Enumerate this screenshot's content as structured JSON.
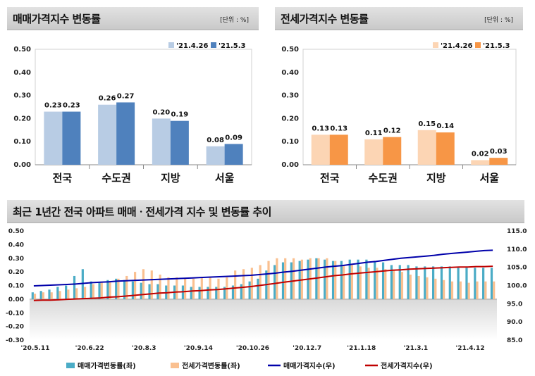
{
  "panels": [
    {
      "title": "매매가격지수 변동률",
      "unit": "[단위 : %]",
      "chart_data": {
        "type": "bar",
        "categories": [
          "전국",
          "수도권",
          "지방",
          "서울"
        ],
        "series": [
          {
            "name": "'21.4.26",
            "values": [
              0.23,
              0.26,
              0.2,
              0.08
            ],
            "color": "#b8cce4"
          },
          {
            "name": "'21.5.3",
            "values": [
              0.23,
              0.27,
              0.19,
              0.09
            ],
            "color": "#4f81bd"
          }
        ],
        "ylim": [
          0,
          0.5
        ],
        "yticks": [
          "0.00",
          "0.10",
          "0.20",
          "0.30",
          "0.40",
          "0.50"
        ],
        "labels": [
          [
            "0.23",
            "0.26",
            "0.20",
            "0.08"
          ],
          [
            "0.23",
            "0.27",
            "0.19",
            "0.09"
          ]
        ]
      }
    },
    {
      "title": "전세가격지수 변동률",
      "unit": "[단위 : %]",
      "chart_data": {
        "type": "bar",
        "categories": [
          "전국",
          "수도권",
          "지방",
          "서울"
        ],
        "series": [
          {
            "name": "'21.4.26",
            "values": [
              0.13,
              0.11,
              0.15,
              0.02
            ],
            "color": "#fcd5b4"
          },
          {
            "name": "'21.5.3",
            "values": [
              0.13,
              0.12,
              0.14,
              0.03
            ],
            "color": "#f79646"
          }
        ],
        "ylim": [
          0,
          0.5
        ],
        "yticks": [
          "0.00",
          "0.10",
          "0.20",
          "0.30",
          "0.40",
          "0.50"
        ],
        "labels": [
          [
            "0.13",
            "0.11",
            "0.15",
            "0.02"
          ],
          [
            "0.13",
            "0.12",
            "0.14",
            "0.03"
          ]
        ]
      }
    }
  ],
  "trend": {
    "title": "최근 1년간 전국 아파트 매매ㆍ전세가격 지수 및 변동률 추이",
    "chart_data": {
      "type": "bar",
      "x_labels": [
        "'20.5.11",
        "'20.6.22",
        "'20.8.3",
        "'20.9.14",
        "'20.10.26",
        "'20.12.7",
        "'21.1.18",
        "'21.3.1",
        "'21.4.12"
      ],
      "left_ylim": [
        -0.3,
        0.5
      ],
      "left_ticks": [
        "0.50",
        "0.40",
        "0.30",
        "0.20",
        "0.10",
        "0.00",
        "-0.10",
        "-0.20",
        "-0.30"
      ],
      "right_ylim": [
        85,
        115
      ],
      "right_ticks": [
        "115.0",
        "110.0",
        "105.0",
        "100.0",
        "95.0",
        "90.0",
        "85.0"
      ],
      "series": [
        {
          "name": "매매가격변동률(좌)",
          "kind": "bar",
          "axis": "left",
          "color": "#4bacc6",
          "values": [
            0.05,
            0.06,
            0.07,
            0.09,
            0.1,
            0.17,
            0.22,
            0.13,
            0.12,
            0.14,
            0.15,
            0.14,
            0.13,
            0.12,
            0.11,
            0.11,
            0.1,
            0.1,
            0.1,
            0.09,
            0.09,
            0.09,
            0.09,
            0.09,
            0.1,
            0.11,
            0.13,
            0.15,
            0.21,
            0.25,
            0.27,
            0.27,
            0.28,
            0.29,
            0.3,
            0.29,
            0.28,
            0.28,
            0.29,
            0.29,
            0.29,
            0.28,
            0.27,
            0.25,
            0.25,
            0.25,
            0.24,
            0.24,
            0.24,
            0.24,
            0.24,
            0.23,
            0.23,
            0.23,
            0.23,
            0.23
          ]
        },
        {
          "name": "전세가격변동률(좌)",
          "kind": "bar",
          "axis": "left",
          "color": "#fac090",
          "values": [
            0.04,
            0.05,
            0.05,
            0.06,
            0.07,
            0.08,
            0.09,
            0.11,
            0.12,
            0.13,
            0.15,
            0.17,
            0.2,
            0.22,
            0.21,
            0.18,
            0.16,
            0.16,
            0.15,
            0.15,
            0.16,
            0.16,
            0.15,
            0.16,
            0.21,
            0.22,
            0.23,
            0.25,
            0.28,
            0.3,
            0.3,
            0.3,
            0.29,
            0.3,
            0.3,
            0.3,
            0.28,
            0.25,
            0.25,
            0.24,
            0.23,
            0.23,
            0.22,
            0.21,
            0.2,
            0.18,
            0.17,
            0.16,
            0.15,
            0.14,
            0.13,
            0.13,
            0.12,
            0.13,
            0.13,
            0.13
          ]
        },
        {
          "name": "매매가격지수(우)",
          "kind": "line",
          "axis": "right",
          "color": "#0000aa",
          "values": [
            99.9,
            100.0,
            100.1,
            100.2,
            100.3,
            100.4,
            100.6,
            100.8,
            100.9,
            101.0,
            101.2,
            101.3,
            101.4,
            101.5,
            101.6,
            101.7,
            101.8,
            101.9,
            102.0,
            102.1,
            102.2,
            102.3,
            102.4,
            102.5,
            102.6,
            102.7,
            102.8,
            103.0,
            103.2,
            103.4,
            103.7,
            103.9,
            104.2,
            104.5,
            104.8,
            105.1,
            105.3,
            105.5,
            105.8,
            106.1,
            106.4,
            106.6,
            106.9,
            107.2,
            107.5,
            107.7,
            107.9,
            108.1,
            108.3,
            108.6,
            108.8,
            109.0,
            109.2,
            109.4,
            109.6,
            109.7
          ]
        },
        {
          "name": "전세가격지수(우)",
          "kind": "line",
          "axis": "right",
          "color": "#c00000",
          "values": [
            95.9,
            96.0,
            96.0,
            96.1,
            96.2,
            96.3,
            96.4,
            96.5,
            96.6,
            96.8,
            96.9,
            97.1,
            97.3,
            97.5,
            97.7,
            97.9,
            98.0,
            98.2,
            98.3,
            98.5,
            98.6,
            98.8,
            98.9,
            99.1,
            99.3,
            99.5,
            99.7,
            100.0,
            100.3,
            100.6,
            100.9,
            101.2,
            101.5,
            101.8,
            102.1,
            102.4,
            102.7,
            102.9,
            103.2,
            103.4,
            103.6,
            103.8,
            104.0,
            104.2,
            104.3,
            104.5,
            104.6,
            104.7,
            104.8,
            104.9,
            105.0,
            105.1,
            105.1,
            105.2,
            105.2,
            105.3
          ]
        }
      ]
    }
  }
}
